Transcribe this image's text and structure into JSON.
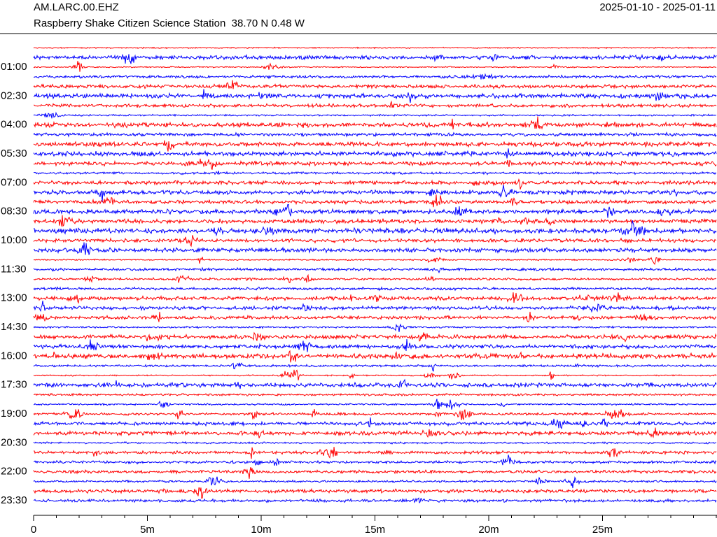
{
  "chart_data": {
    "type": "helicorder",
    "title": "AM.LARC.00.EHZ",
    "subtitle": "Raspberry Shake Citizen Science Station  38.70 N 0.48 W",
    "date_range": "2025-01-10 - 2025-01-11",
    "categories": [
      null,
      null,
      "01:00",
      null,
      null,
      "02:30",
      null,
      null,
      "04:00",
      null,
      null,
      "05:30",
      null,
      null,
      "07:00",
      null,
      null,
      "08:30",
      null,
      null,
      "10:00",
      null,
      null,
      "11:30",
      null,
      null,
      "13:00",
      null,
      null,
      "14:30",
      null,
      null,
      "16:00",
      null,
      null,
      "17:30",
      null,
      null,
      "19:00",
      null,
      null,
      "20:30",
      null,
      null,
      "22:00",
      null,
      null,
      "23:30"
    ],
    "trace_colors": [
      "#ff0000",
      "#0000ff"
    ],
    "xlim": [
      0,
      30
    ],
    "xticks": [
      0,
      {
        "value": 5,
        "label": "5m"
      },
      {
        "value": 10,
        "label": "10m"
      },
      {
        "value": 15,
        "label": "15m"
      },
      {
        "value": 20,
        "label": "20m"
      },
      {
        "value": 25,
        "label": "25m"
      }
    ],
    "minor_xticks": [
      1,
      2,
      3,
      4,
      6,
      7,
      8,
      9,
      11,
      12,
      13,
      14,
      16,
      17,
      18,
      19,
      21,
      22,
      23,
      24,
      26,
      27,
      28,
      29,
      30
    ]
  }
}
